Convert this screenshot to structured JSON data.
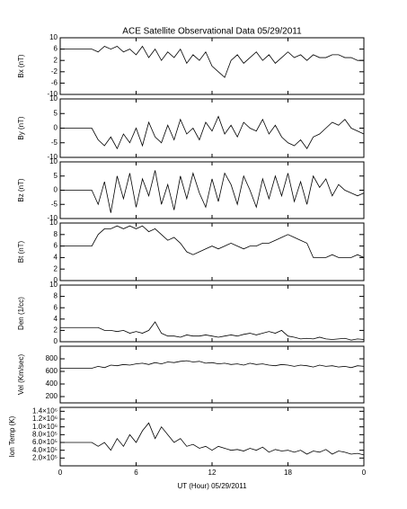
{
  "chart_data": {
    "type": "multi-panel",
    "title": "ACE Satellite Observational Data   05/29/2011",
    "xlabel": "UT (Hour)   05/29/2011",
    "xlim": [
      0,
      24
    ],
    "xticks": [
      0,
      6,
      12,
      18,
      {
        "value": 24,
        "label": "0"
      }
    ],
    "x": [
      0,
      0.5,
      1,
      1.5,
      2,
      2.5,
      3,
      3.5,
      4,
      4.5,
      5,
      5.5,
      6,
      6.5,
      7,
      7.5,
      8,
      8.5,
      9,
      9.5,
      10,
      10.5,
      11,
      11.5,
      12,
      12.5,
      13,
      13.5,
      14,
      14.5,
      15,
      15.5,
      16,
      16.5,
      17,
      17.5,
      18,
      18.5,
      19,
      19.5,
      20,
      20.5,
      21,
      21.5,
      22,
      22.5,
      23,
      23.5,
      24
    ],
    "color": "#000000",
    "panels": [
      {
        "type": "line",
        "ylabel": "Bx (nT)",
        "ylim": [
          -10,
          10
        ],
        "yticks": [
          -10,
          -6,
          -2,
          2,
          6,
          10
        ],
        "values": [
          6,
          6,
          6,
          6,
          6,
          6,
          5,
          7,
          6,
          7,
          5,
          6,
          4,
          7,
          3,
          6,
          2,
          5,
          3,
          6,
          1,
          4,
          2,
          5,
          0,
          -2,
          -4,
          2,
          4,
          1,
          3,
          5,
          2,
          4,
          1,
          3,
          5,
          3,
          4,
          2,
          4,
          3,
          3,
          4,
          4,
          3,
          3,
          2,
          2
        ]
      },
      {
        "type": "line",
        "ylabel": "By (nT)",
        "ylim": [
          -10,
          10
        ],
        "yticks": [
          -10,
          -5,
          0,
          5,
          10
        ],
        "values": [
          0,
          0,
          0,
          0,
          0,
          0,
          -4,
          -6,
          -3,
          -7,
          -2,
          -5,
          0,
          -6,
          2,
          -3,
          -5,
          1,
          -4,
          3,
          -2,
          0,
          -4,
          2,
          -1,
          4,
          -2,
          1,
          -3,
          2,
          0,
          -1,
          3,
          -2,
          1,
          -3,
          -5,
          -6,
          -4,
          -7,
          -3,
          -2,
          0,
          2,
          1,
          3,
          0,
          -1,
          -2
        ]
      },
      {
        "type": "line",
        "ylabel": "Bz (nT)",
        "ylim": [
          -10,
          10
        ],
        "yticks": [
          -10,
          -5,
          0,
          5,
          10
        ],
        "values": [
          0,
          0,
          0,
          0,
          0,
          0,
          -5,
          3,
          -8,
          5,
          -3,
          6,
          -6,
          4,
          -2,
          7,
          -5,
          2,
          -7,
          5,
          -3,
          6,
          -1,
          -6,
          4,
          -4,
          6,
          2,
          -5,
          5,
          0,
          -6,
          4,
          -3,
          5,
          -2,
          6,
          -4,
          3,
          -5,
          5,
          1,
          4,
          -2,
          2,
          0,
          -1,
          -2,
          -1
        ]
      },
      {
        "type": "line",
        "ylabel": "Bt (nT)",
        "ylim": [
          0,
          10
        ],
        "yticks": [
          0,
          2,
          4,
          6,
          8,
          10
        ],
        "values": [
          6,
          6,
          6,
          6,
          6,
          6,
          8,
          9,
          9,
          9.5,
          9,
          9.5,
          9,
          9.5,
          8.5,
          9,
          8,
          7,
          7.5,
          6.5,
          5,
          4.5,
          5,
          5.5,
          6,
          5.5,
          6,
          6.5,
          6,
          5.5,
          6,
          6,
          6.5,
          6.5,
          7,
          7.5,
          8,
          7.5,
          7,
          6.5,
          4,
          4,
          4,
          4.5,
          4,
          4,
          4,
          4.5,
          4
        ]
      },
      {
        "type": "line",
        "ylabel": "Den (1/cc)",
        "ylim": [
          0,
          10
        ],
        "yticks": [
          0,
          2,
          4,
          6,
          8,
          10
        ],
        "values": [
          2.5,
          2.5,
          2.5,
          2.5,
          2.5,
          2.5,
          2.5,
          2,
          2,
          1.8,
          2,
          1.5,
          1.8,
          1.5,
          2,
          3.5,
          1.5,
          1,
          1,
          0.8,
          1.2,
          1,
          1,
          1.2,
          1,
          0.8,
          1,
          1.2,
          1,
          1.3,
          1.5,
          1.2,
          1.5,
          1.8,
          1.5,
          2,
          1,
          0.8,
          0.5,
          0.6,
          0.5,
          0.8,
          0.5,
          0.4,
          0.5,
          0.6,
          0.3,
          0.5,
          0.4
        ]
      },
      {
        "type": "line",
        "ylabel": "Vel (Km/sec)",
        "ylim": [
          100,
          1000
        ],
        "yticks": [
          200,
          400,
          600,
          800
        ],
        "values": [
          650,
          650,
          650,
          650,
          650,
          650,
          680,
          660,
          700,
          690,
          710,
          700,
          720,
          730,
          710,
          740,
          720,
          750,
          740,
          760,
          770,
          750,
          760,
          730,
          740,
          720,
          730,
          710,
          720,
          700,
          730,
          710,
          720,
          700,
          690,
          710,
          700,
          680,
          700,
          690,
          670,
          700,
          680,
          690,
          670,
          680,
          660,
          690,
          680
        ]
      },
      {
        "type": "line",
        "ylabel": "Ion Temp (K)",
        "ylim": [
          0,
          1500000
        ],
        "yticks": [
          {
            "value": 200000,
            "label": "2.0×10⁵"
          },
          {
            "value": 400000,
            "label": "4.0×10⁵"
          },
          {
            "value": 600000,
            "label": "6.0×10⁵"
          },
          {
            "value": 800000,
            "label": "8.0×10⁵"
          },
          {
            "value": 1000000,
            "label": "1.0×10⁶"
          },
          {
            "value": 1200000,
            "label": "1.2×10⁶"
          },
          {
            "value": 1400000,
            "label": "1.4×10⁶"
          }
        ],
        "values": [
          600000,
          600000,
          600000,
          600000,
          600000,
          600000,
          500000,
          600000,
          400000,
          700000,
          500000,
          800000,
          600000,
          900000,
          1100000,
          700000,
          1000000,
          800000,
          600000,
          700000,
          500000,
          550000,
          450000,
          500000,
          400000,
          500000,
          450000,
          400000,
          420000,
          380000,
          450000,
          400000,
          480000,
          350000,
          420000,
          380000,
          400000,
          350000,
          400000,
          300000,
          380000,
          350000,
          420000,
          300000,
          380000,
          350000,
          300000,
          320000,
          280000
        ]
      }
    ]
  }
}
